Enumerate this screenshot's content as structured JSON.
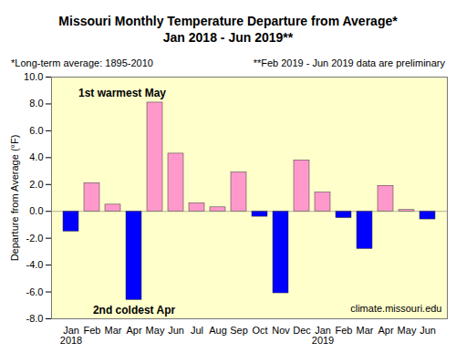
{
  "chart_data": {
    "type": "bar",
    "title": "Missouri Monthly Temperature Departure from Average*",
    "subtitle": "Jan 2018 - Jun 2019**",
    "y_label": "Departure from Average (°F)",
    "categories": [
      "Jan\n2018",
      "Feb",
      "Mar",
      "Apr",
      "May",
      "Jun",
      "Jul",
      "Aug",
      "Sep",
      "Oct",
      "Nov",
      "Dec",
      "Jan\n2019",
      "Feb",
      "Mar",
      "Apr",
      "May",
      "Jun"
    ],
    "values": [
      -1.5,
      2.1,
      0.5,
      -6.6,
      8.1,
      4.3,
      0.6,
      0.3,
      2.9,
      -0.4,
      -6.1,
      3.8,
      1.4,
      -0.5,
      -2.8,
      1.9,
      0.1,
      -0.6
    ],
    "colors": [
      "#0000ff",
      "#ff99cc",
      "#ff99cc",
      "#0000ff",
      "#ff99cc",
      "#ff99cc",
      "#ff99cc",
      "#ff99cc",
      "#ff99cc",
      "#0000ff",
      "#0000ff",
      "#ff99cc",
      "#ff99cc",
      "#0000ff",
      "#0000ff",
      "#ff99cc",
      "#ff99cc",
      "#0000ff"
    ],
    "ylim": [
      -8,
      10
    ],
    "yticks": [
      {
        "value": -8,
        "label": "-8.0"
      },
      {
        "value": -6,
        "label": "-6.0"
      },
      {
        "value": -4,
        "label": "-4.0"
      },
      {
        "value": -2,
        "label": "-2.0"
      },
      {
        "value": 0,
        "label": "0.0"
      },
      {
        "value": 2,
        "label": "2.0"
      },
      {
        "value": 4,
        "label": "4.0"
      },
      {
        "value": 6,
        "label": "6.0"
      },
      {
        "value": 8,
        "label": "8.0"
      },
      {
        "value": 10,
        "label": "10.0"
      }
    ],
    "grid": false,
    "annotations": [
      "1st warmest May",
      "2nd coldest Apr",
      "*Long-term average: 1895-2010",
      "**Feb 2019 - Jun 2019 data are preliminary",
      "climate.missouri.edu"
    ]
  }
}
